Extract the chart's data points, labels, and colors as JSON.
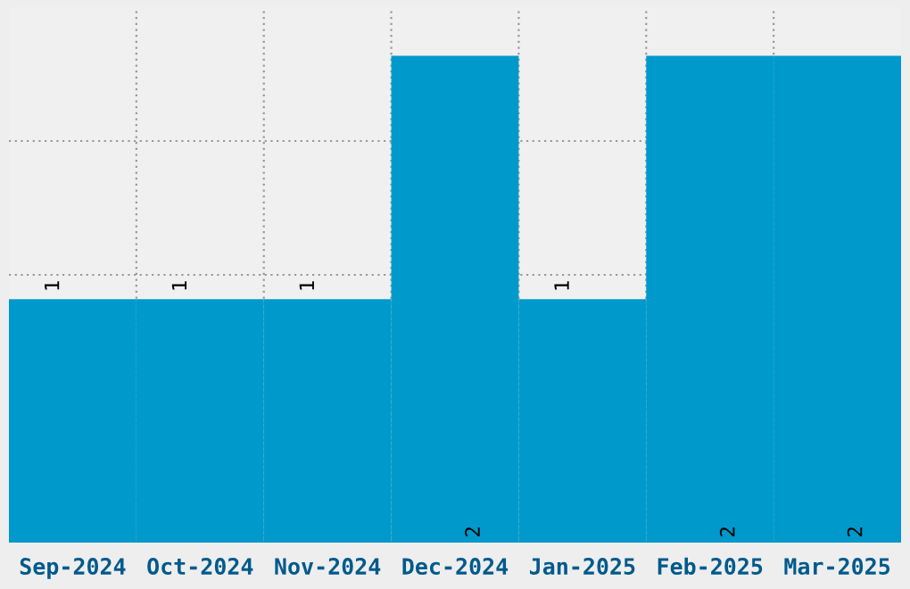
{
  "chart_data": {
    "type": "bar",
    "categories": [
      "Sep-2024",
      "Oct-2024",
      "Nov-2024",
      "Dec-2024",
      "Jan-2025",
      "Feb-2025",
      "Mar-2025"
    ],
    "values": [
      1,
      1,
      1,
      2,
      1,
      2,
      2
    ],
    "color": "#0099cc",
    "ylim": [
      0,
      2.2
    ],
    "yticks": [
      {
        "value": 0.55,
        "label": null
      },
      {
        "value": 1.1,
        "label": null
      },
      {
        "value": 1.65,
        "label": null
      }
    ],
    "tick_labels": "x",
    "grid": true,
    "data_labels": true
  }
}
